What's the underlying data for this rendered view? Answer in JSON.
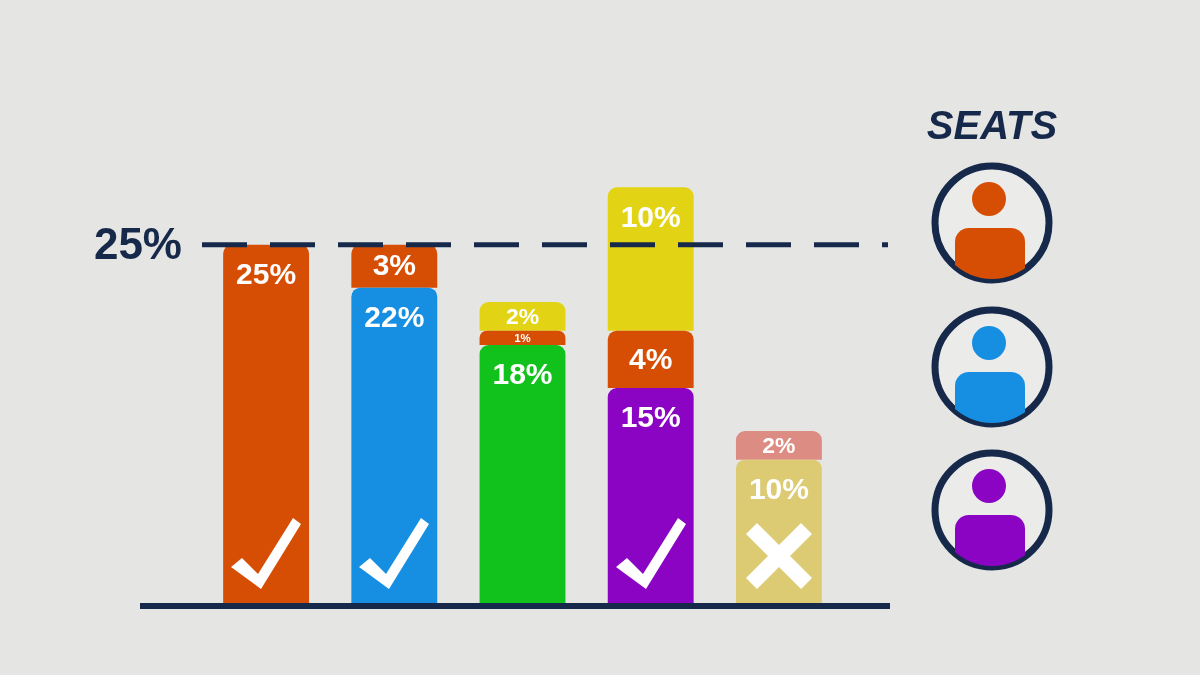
{
  "chart_data": {
    "type": "bar",
    "categories": [
      null,
      null,
      null,
      null,
      null
    ],
    "stacked": true,
    "tick_labels": false,
    "series": [
      {
        "values": [
          25,
          22,
          18,
          15,
          10
        ],
        "colors": [
          "#d64e04",
          "#168fe2",
          "#12c21c",
          "#8b04c4",
          "#dccb72"
        ],
        "value_labels": [
          "25%",
          "22%",
          "18%",
          "15%",
          "10%"
        ]
      },
      {
        "values": [
          null,
          3,
          1,
          4,
          null
        ],
        "color": "#d64e04",
        "value_labels": [
          null,
          "3%",
          "1%",
          "4%",
          null
        ]
      },
      {
        "values": [
          null,
          null,
          2,
          10,
          2
        ],
        "colors": [
          null,
          null,
          "#e2d414",
          "#e2d414",
          "#dc8c82"
        ],
        "value_labels": [
          null,
          null,
          "2%",
          "10%",
          "2%"
        ]
      }
    ],
    "ref_lines": [
      {
        "axis": "y",
        "value": 25,
        "label": "25%",
        "color": "#16294a",
        "line_style": "dashed"
      }
    ],
    "annotations": [
      "SEATS"
    ]
  }
}
